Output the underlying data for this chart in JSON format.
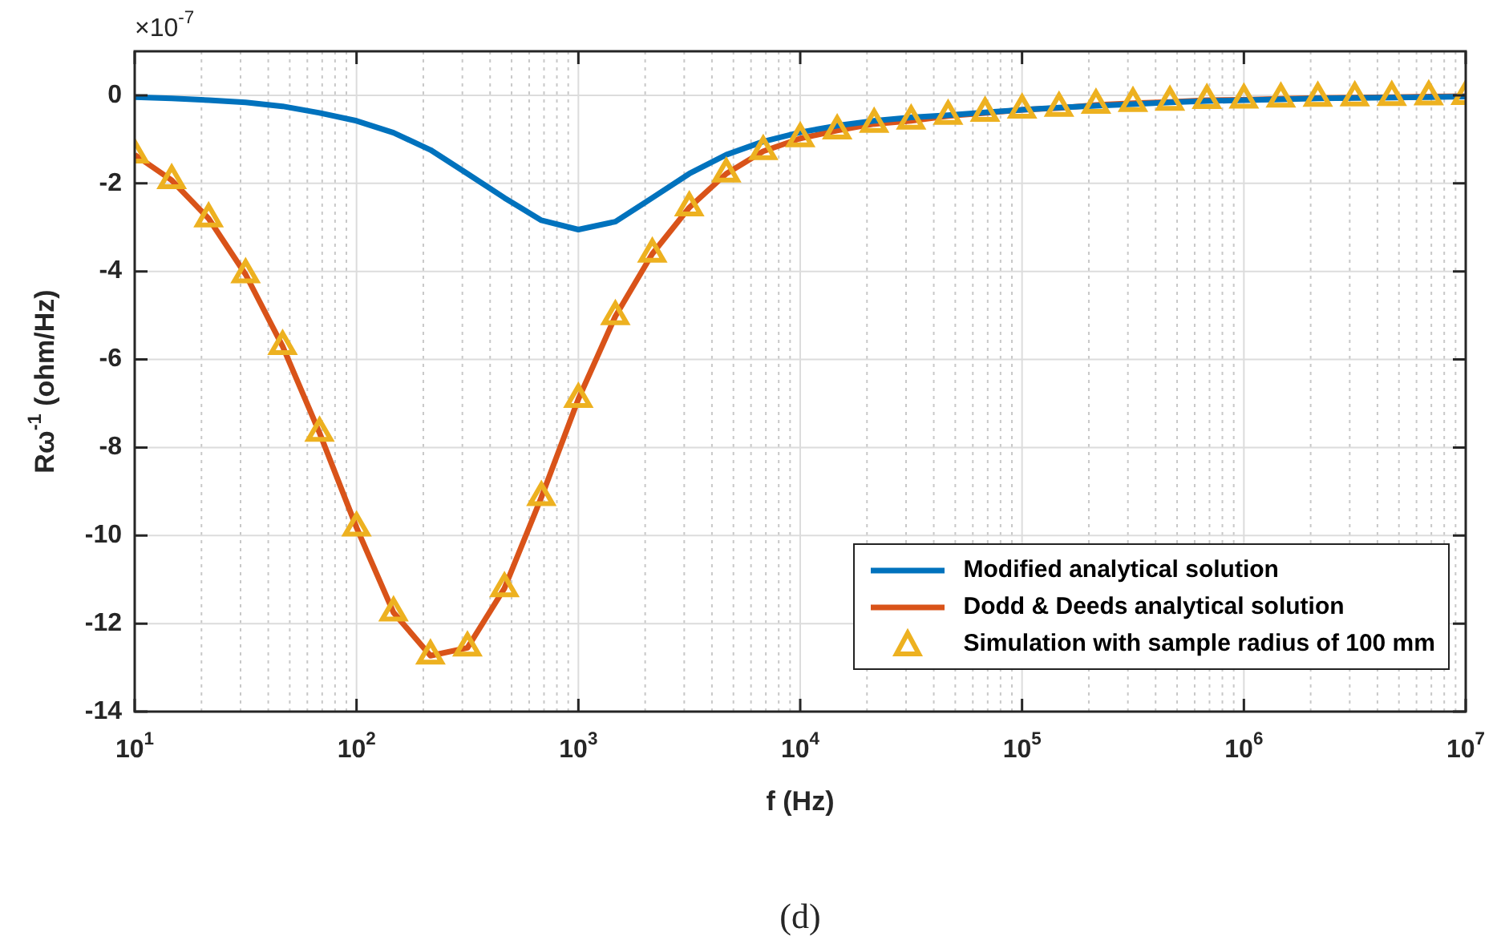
{
  "chart_data": {
    "type": "line",
    "xlabel": "f (Hz)",
    "ylabel": "Rω$^{-1}$ (ohm/Hz)",
    "annotations": [
      "×10$^{-7}$",
      "(d)"
    ],
    "log": "x",
    "grid": true,
    "legend": "bottom right",
    "xlim": [
      10,
      10000000
    ],
    "ylim": [
      -14,
      1
    ],
    "xticks": [
      {
        "value": 10,
        "label": "10$^{1}$"
      },
      {
        "value": 100,
        "label": "10$^{2}$"
      },
      {
        "value": 1000,
        "label": "10$^{3}$"
      },
      {
        "value": 10000,
        "label": "10$^{4}$"
      },
      {
        "value": 100000,
        "label": "10$^{5}$"
      },
      {
        "value": 1000000,
        "label": "10$^{6}$"
      },
      {
        "value": 10000000,
        "label": "10$^{7}$"
      }
    ],
    "yticks": [
      -14,
      -12,
      -10,
      -8,
      -6,
      -4,
      -2,
      0
    ],
    "x": [
      10,
      14.68,
      21.54,
      31.62,
      46.42,
      68.13,
      100,
      146.8,
      215.4,
      316.2,
      464.2,
      681.3,
      1000,
      1468,
      2154,
      3162,
      4642,
      6813,
      10000,
      14678,
      21544,
      31623,
      46416,
      68129,
      100000,
      146780,
      215440,
      316230,
      464160,
      681290,
      1000000,
      1467800,
      2154400,
      3162300,
      4641600,
      6812900,
      10000000
    ],
    "series": [
      {
        "name": "Modified analytical solution",
        "color": "#0072bd",
        "marker": "none",
        "values": [
          -0.04,
          -0.07,
          -0.11,
          -0.16,
          -0.25,
          -0.4,
          -0.58,
          -0.85,
          -1.24,
          -1.78,
          -2.33,
          -2.84,
          -3.05,
          -2.87,
          -2.33,
          -1.78,
          -1.35,
          -1.05,
          -0.84,
          -0.69,
          -0.58,
          -0.5,
          -0.45,
          -0.39,
          -0.33,
          -0.28,
          -0.24,
          -0.2,
          -0.16,
          -0.13,
          -0.11,
          -0.09,
          -0.07,
          -0.06,
          -0.05,
          -0.04,
          -0.03
        ]
      },
      {
        "name": "Dodd & Deeds analytical solution",
        "color": "#d95319",
        "marker": "none",
        "values": [
          -1.35,
          -1.93,
          -2.8,
          -4.07,
          -5.7,
          -7.67,
          -9.82,
          -11.75,
          -12.73,
          -12.55,
          -11.2,
          -9.13,
          -6.9,
          -5.02,
          -3.6,
          -2.55,
          -1.78,
          -1.27,
          -0.98,
          -0.8,
          -0.65,
          -0.58,
          -0.47,
          -0.4,
          -0.33,
          -0.29,
          -0.22,
          -0.18,
          -0.15,
          -0.11,
          -0.1,
          -0.08,
          -0.06,
          -0.05,
          -0.04,
          -0.03,
          -0.02
        ]
      },
      {
        "name": "Simulation with sample radius of 100 mm",
        "type": "scatter",
        "color": "#edb120",
        "marker": "triangle",
        "values": [
          -1.35,
          -1.93,
          -2.8,
          -4.07,
          -5.7,
          -7.67,
          -9.82,
          -11.75,
          -12.73,
          -12.55,
          -11.2,
          -9.13,
          -6.9,
          -5.02,
          -3.6,
          -2.55,
          -1.78,
          -1.27,
          -0.98,
          -0.8,
          -0.65,
          -0.58,
          -0.47,
          -0.4,
          -0.33,
          -0.29,
          -0.22,
          -0.18,
          -0.15,
          -0.11,
          -0.1,
          -0.08,
          -0.06,
          -0.05,
          -0.04,
          -0.03,
          -0.02
        ]
      }
    ]
  }
}
